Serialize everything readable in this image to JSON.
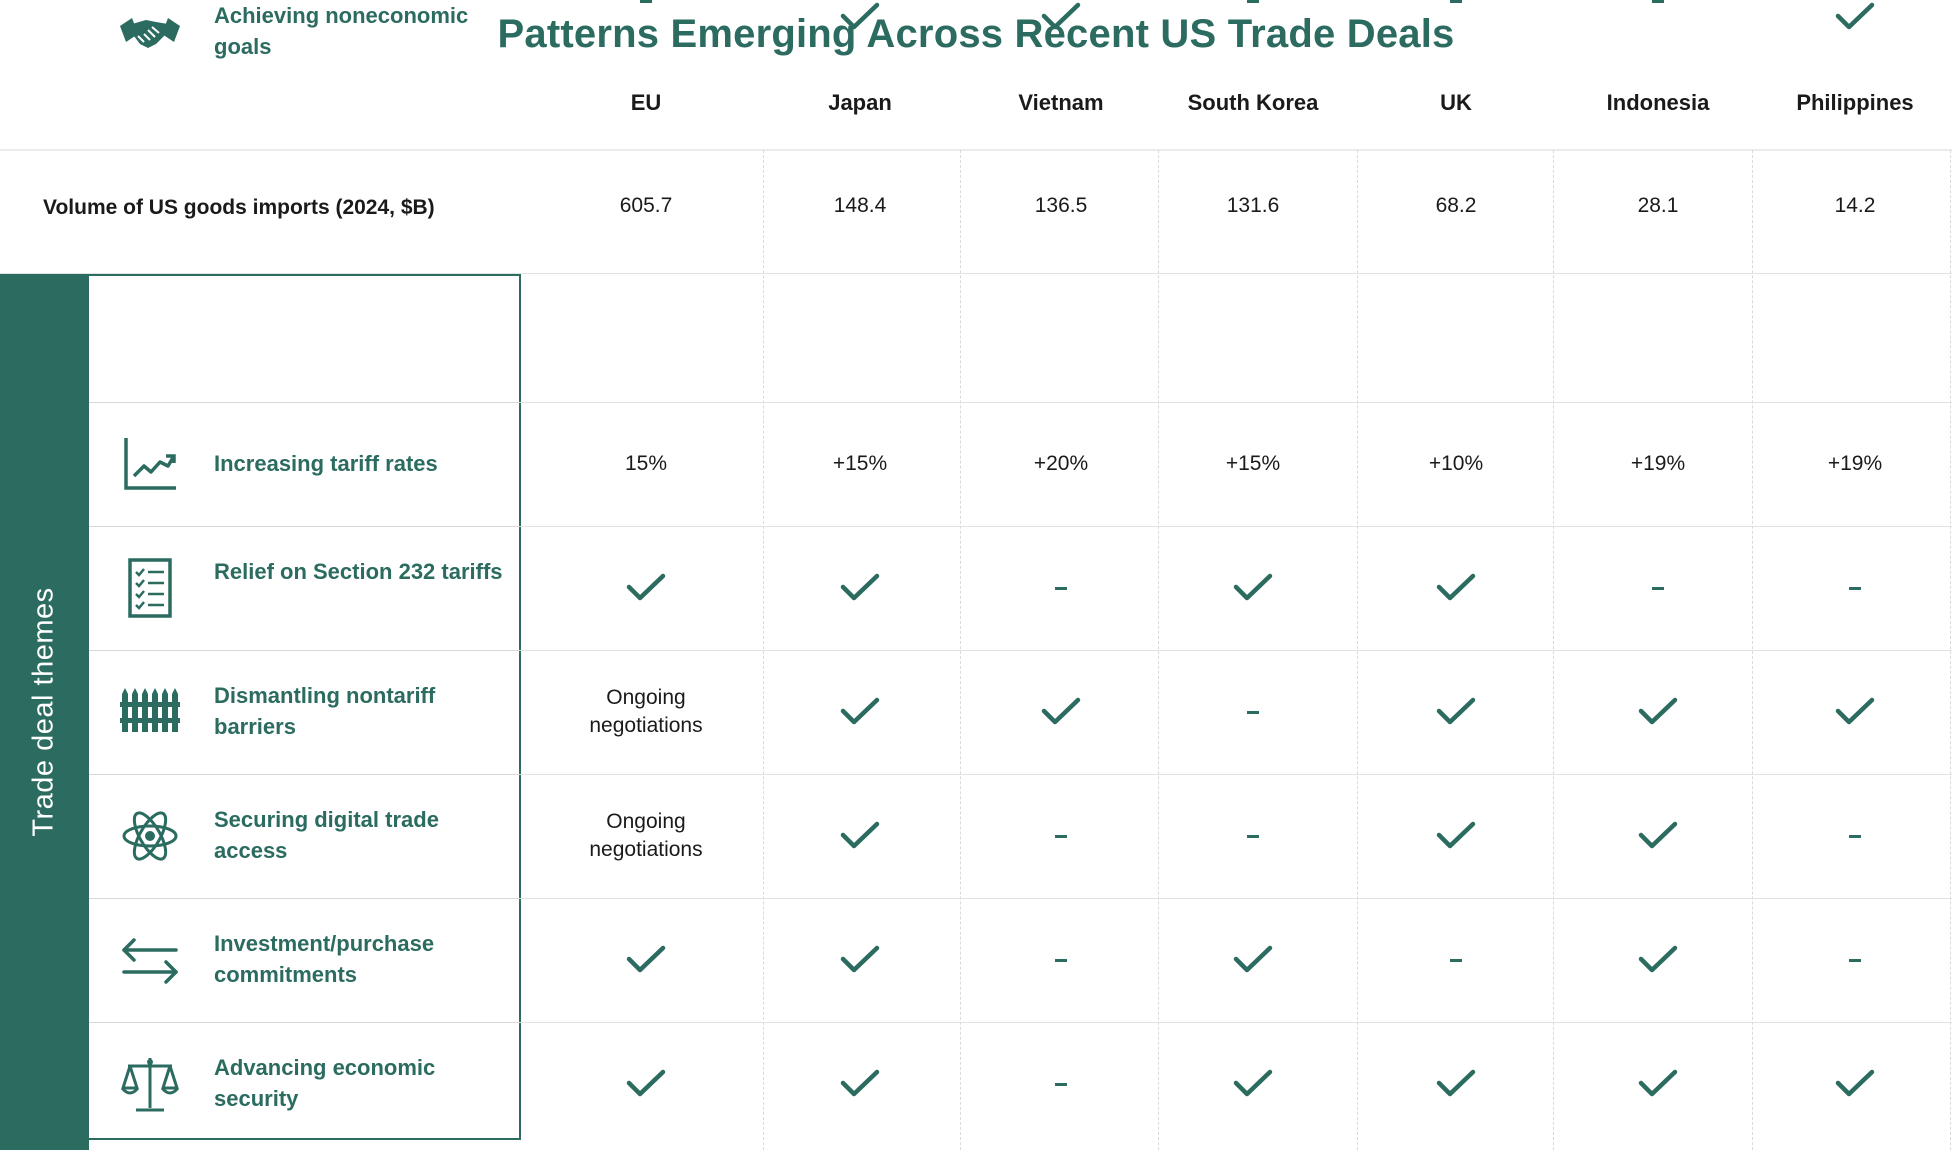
{
  "title": "Patterns Emerging Across Recent US Trade Deals",
  "columns": [
    "EU",
    "Japan",
    "Vietnam",
    "South Korea",
    "UK",
    "Indonesia",
    "Philippines"
  ],
  "volume_label": "Volume of US goods imports (2024, $B)",
  "sidebar_label": "Trade deal themes",
  "themes": [
    {
      "label": "Increasing tariff rates",
      "icon": "rising-chart-icon"
    },
    {
      "label": "Relief on Section 232 tariffs",
      "icon": "checklist-icon"
    },
    {
      "label": "Dismantling nontariff barriers",
      "icon": "fence-icon"
    },
    {
      "label": "Securing digital trade access",
      "icon": "atom-icon"
    },
    {
      "label": "Investment/purchase commitments",
      "icon": "exchange-arrows-icon"
    },
    {
      "label": "Advancing economic security",
      "icon": "scales-icon"
    },
    {
      "label": "Achieving noneconomic goals",
      "icon": "handshake-icon"
    }
  ],
  "colors": {
    "accent": "#2b6b60",
    "text": "#1a1a1a",
    "grid": "#dadada"
  },
  "chart_data": {
    "type": "table",
    "title": "Patterns Emerging Across Recent US Trade Deals",
    "columns": [
      "EU",
      "Japan",
      "Vietnam",
      "South Korea",
      "UK",
      "Indonesia",
      "Philippines"
    ],
    "rows": [
      {
        "label": "Volume of US goods imports (2024, $B)",
        "values": [
          "605.7",
          "148.4",
          "136.5",
          "131.6",
          "68.2",
          "28.1",
          "14.2"
        ]
      },
      {
        "label": "Increasing tariff rates",
        "values": [
          "15%",
          "+15%",
          "+20%",
          "+15%",
          "+10%",
          "+19%",
          "+19%"
        ]
      },
      {
        "label": "Relief on Section 232 tariffs",
        "values": [
          "check",
          "check",
          "dash",
          "check",
          "check",
          "dash",
          "dash"
        ]
      },
      {
        "label": "Dismantling nontariff barriers",
        "values": [
          "Ongoing negotiations",
          "check",
          "check",
          "dash",
          "check",
          "check",
          "check"
        ]
      },
      {
        "label": "Securing digital trade access",
        "values": [
          "Ongoing negotiations",
          "check",
          "dash",
          "dash",
          "check",
          "check",
          "dash"
        ]
      },
      {
        "label": "Investment/purchase commitments",
        "values": [
          "check",
          "check",
          "dash",
          "check",
          "dash",
          "check",
          "dash"
        ]
      },
      {
        "label": "Advancing economic security",
        "values": [
          "check",
          "check",
          "dash",
          "check",
          "check",
          "check",
          "check"
        ]
      },
      {
        "label": "Achieving noneconomic goals",
        "values": [
          "dash",
          "check",
          "check",
          "dash",
          "dash",
          "dash",
          "check"
        ]
      }
    ]
  }
}
